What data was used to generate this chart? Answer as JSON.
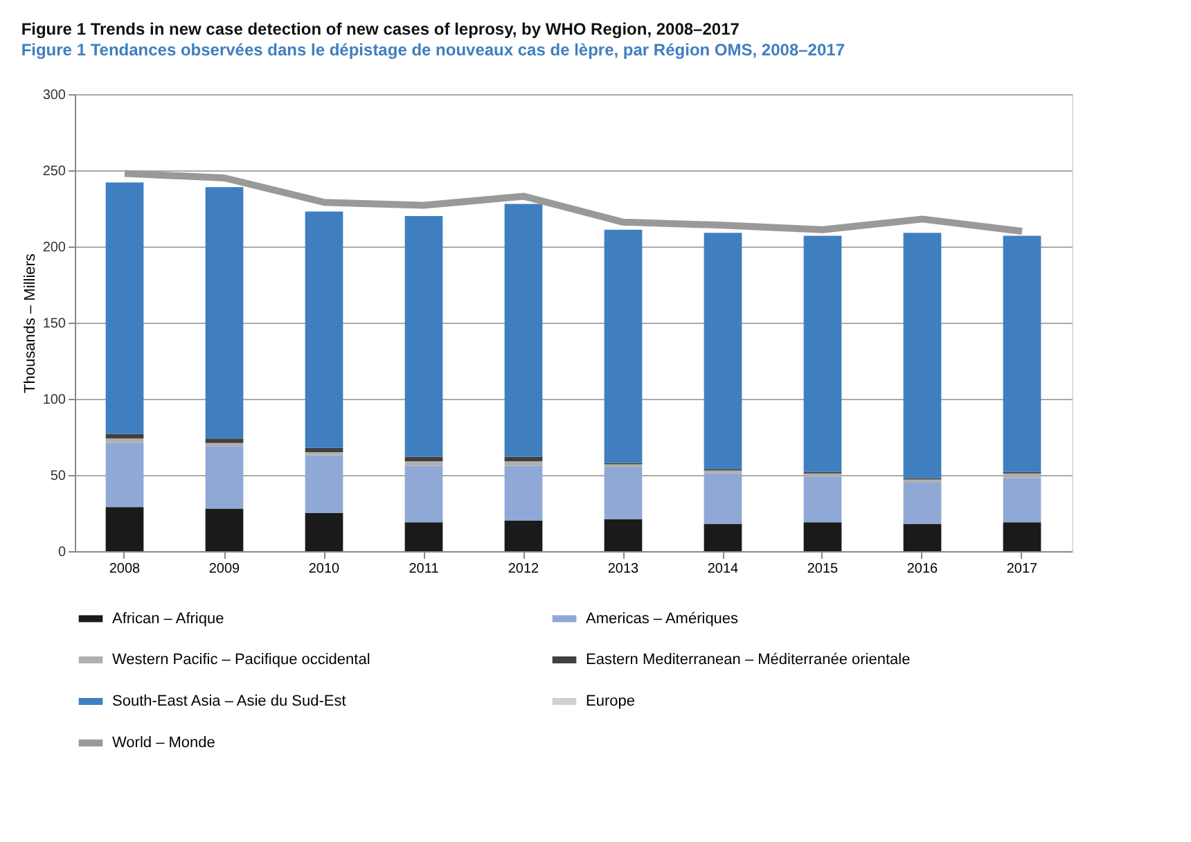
{
  "chart_data": {
    "type": "bar",
    "stacked": true,
    "title": "Figure 1  Trends in new case detection of new cases of leprosy, by WHO Region, 2008–2017",
    "subtitle": "Figure 1  Tendances observées dans le dépistage de nouveaux cas de lèpre, par Région OMS, 2008–2017",
    "ylabel": "Thousands – Milliers",
    "categories": [
      "2008",
      "2009",
      "2010",
      "2011",
      "2012",
      "2013",
      "2014",
      "2015",
      "2016",
      "2017"
    ],
    "series": [
      {
        "name": "African – Afrique",
        "color": "#1a1a1a",
        "values": [
          29,
          28,
          25,
          19,
          20,
          21,
          18,
          19,
          18,
          19
        ]
      },
      {
        "name": "Americas – Amériques",
        "color": "#8fa8d6",
        "values": [
          42,
          41,
          38,
          37,
          36,
          34,
          33,
          30,
          27,
          29
        ]
      },
      {
        "name": "Western Pacific – Pacifique occidental",
        "color": "#b0b0b0",
        "values": [
          3,
          2,
          2,
          3,
          3,
          2,
          2,
          2,
          2,
          3
        ]
      },
      {
        "name": "Eastern Mediterranean – Méditerranée orientale",
        "color": "#404040",
        "values": [
          3,
          3,
          3,
          3,
          3,
          1,
          1,
          1,
          1,
          1
        ]
      },
      {
        "name": "South-East Asia – Asie du Sud-Est",
        "color": "#3f7fc0",
        "values": [
          165,
          165,
          155,
          158,
          166,
          153,
          155,
          155,
          161,
          155
        ]
      },
      {
        "name": "Europe",
        "color": "#d0d0d0",
        "values": [
          0,
          0,
          0,
          0,
          0,
          0,
          0,
          0,
          0,
          0
        ]
      },
      {
        "name": "World – Monde",
        "color": "#999999",
        "type": "line",
        "values": [
          248,
          245,
          229,
          227,
          233,
          216,
          214,
          211,
          218,
          210
        ]
      }
    ],
    "ylim": [
      0,
      300
    ],
    "yticks": [
      0,
      50,
      100,
      150,
      200,
      250,
      300
    ],
    "grid": "y",
    "legend": "bottom",
    "marker": "none",
    "line_style": "solid"
  }
}
